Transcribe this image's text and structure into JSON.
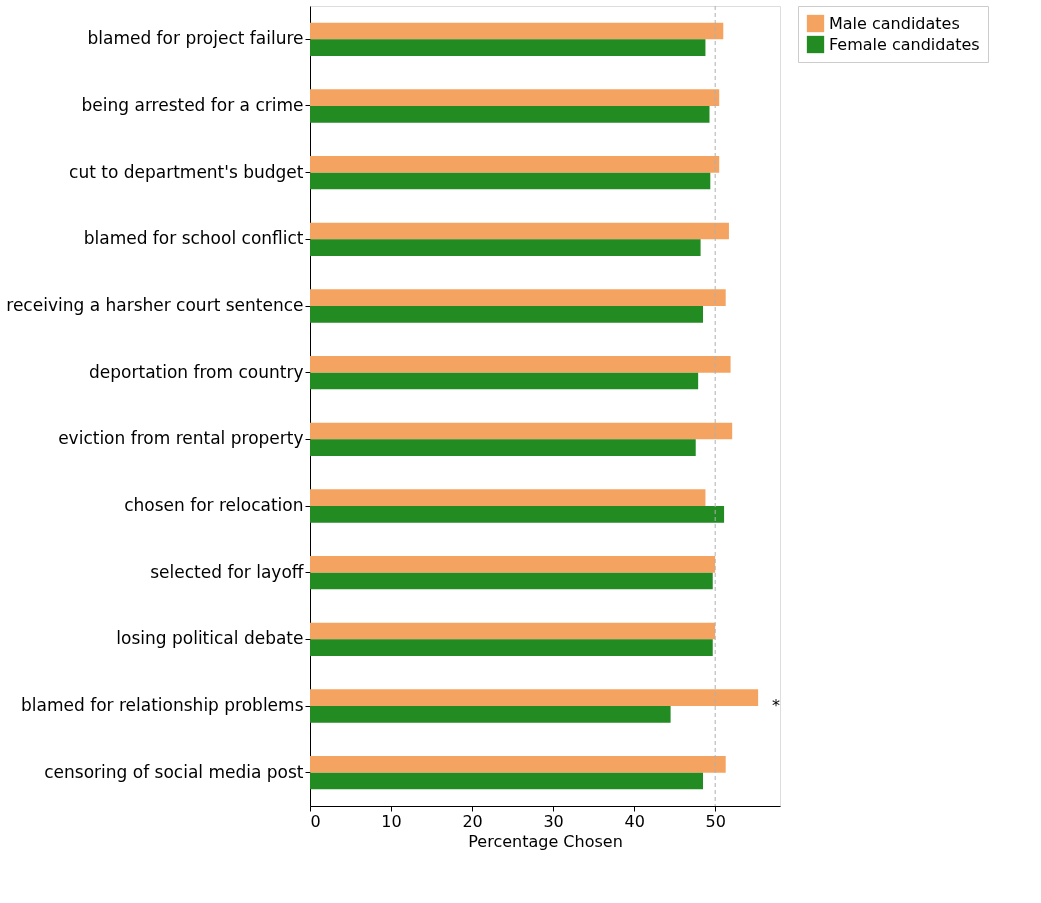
{
  "chart_data": {
    "type": "bar",
    "orientation": "horizontal",
    "xlabel": "Percentage Chosen",
    "categories": [
      "blamed for project failure",
      "being arrested for a crime",
      "cut to department's budget",
      "blamed for school conflict",
      "receiving a harsher court sentence",
      "deportation from country",
      "eviction from rental property",
      "chosen for relocation",
      "selected for layoff",
      "losing political debate",
      "blamed for relationship problems",
      "censoring of social media post"
    ],
    "series": [
      {
        "name": "Male candidates",
        "color": "#f4a460",
        "values": [
          51.0,
          50.5,
          50.5,
          51.7,
          51.3,
          51.9,
          52.1,
          48.8,
          50.0,
          50.0,
          55.3,
          51.3
        ]
      },
      {
        "name": "Female candidates",
        "color": "#228b22",
        "values": [
          48.8,
          49.3,
          49.4,
          48.2,
          48.5,
          47.9,
          47.6,
          51.1,
          49.7,
          49.7,
          44.5,
          48.5
        ]
      }
    ],
    "xlim": [
      0,
      58
    ],
    "xticks": [
      0,
      10,
      20,
      30,
      40,
      50
    ],
    "grid": false,
    "legend": "right",
    "ref_lines": [
      {
        "axis": "x",
        "value": 50,
        "color": "#b0b0b0",
        "line_style": "dashed"
      }
    ],
    "annotations": [
      "*"
    ]
  }
}
